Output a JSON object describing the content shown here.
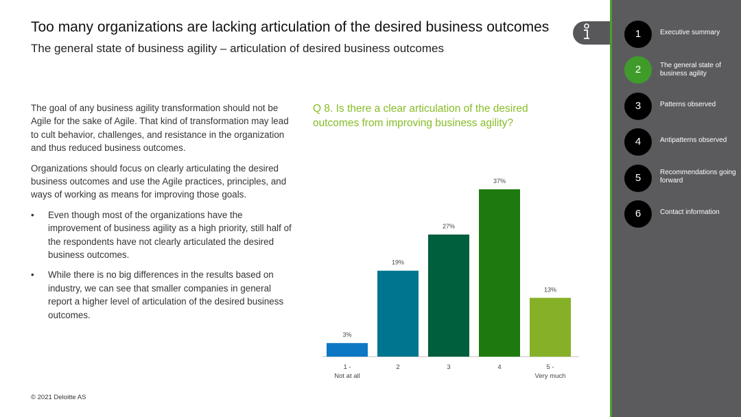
{
  "header": {
    "title": "Too many organizations are lacking articulation of the desired business outcomes",
    "subtitle": "The general state of business agility – articulation of desired business outcomes"
  },
  "body": {
    "paragraphs": [
      "The goal of any business agility transformation should not be Agile for the sake of Agile. That kind of transformation may lead to cult behavior, challenges, and resistance in the organization and thus reduced business outcomes.",
      "Organizations should focus on clearly articulating the desired business outcomes and use the Agile practices, principles, and ways of working as means for improving those goals."
    ],
    "bullet_symbol": "•",
    "bullets": [
      "Even though most of the organizations have the improvement of business agility as a high priority, still half of the respondents have not clearly articulated the desired business outcomes.",
      "While there is no big differences in the results based on industry, we can see that smaller companies in general report a higher level of articulation of the desired business outcomes."
    ]
  },
  "question": "Q 8. Is there a clear articulation of the desired outcomes from improving business agility?",
  "footer": "© 2021 Deloitte AS",
  "info_icon": "info-icon",
  "nav": [
    {
      "num": "1",
      "label": "Executive summary",
      "active": false
    },
    {
      "num": "2",
      "label": "The general state of business agility",
      "active": true
    },
    {
      "num": "3",
      "label": "Patterns observed",
      "active": false
    },
    {
      "num": "4",
      "label": "Antipatterns observed",
      "active": false
    },
    {
      "num": "5",
      "label": "Recommendations going forward",
      "active": false
    },
    {
      "num": "6",
      "label": "Contact information",
      "active": false
    }
  ],
  "colors": {
    "accent_green": "#86bc25",
    "sidebar": "#5b5b5e",
    "active_nav": "#3f9c2b"
  },
  "chart_data": {
    "type": "bar",
    "title": "",
    "xlabel": "",
    "ylabel": "",
    "categories": [
      "1 -\nNot at all",
      "2",
      "3",
      "4",
      "5 -\nVery much"
    ],
    "values": [
      3,
      19,
      27,
      37,
      13
    ],
    "value_labels": [
      "3%",
      "19%",
      "27%",
      "37%",
      "13%"
    ],
    "colors": [
      "#0d77c4",
      "#00758f",
      "#005f3c",
      "#1e7a0f",
      "#86b027"
    ],
    "ylim": [
      0,
      37
    ],
    "grid": false,
    "legend": "none"
  }
}
